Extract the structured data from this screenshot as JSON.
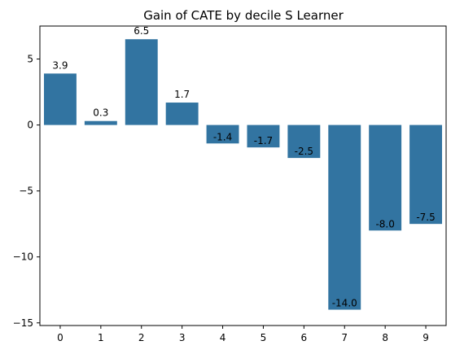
{
  "chart_data": {
    "type": "bar",
    "title": "Gain of CATE by decile S Learner",
    "xlabel": "",
    "ylabel": "",
    "categories": [
      "0",
      "1",
      "2",
      "3",
      "4",
      "5",
      "6",
      "7",
      "8",
      "9"
    ],
    "values": [
      3.9,
      0.3,
      6.5,
      1.7,
      -1.4,
      -1.7,
      -2.5,
      -14.0,
      -8.0,
      -7.5
    ],
    "data_labels": [
      "3.9",
      "0.3",
      "6.5",
      "1.7",
      "-1.4",
      "-1.7",
      "-2.5",
      "-14.0",
      "-8.0",
      "-7.5"
    ],
    "ylim": [
      -15.2,
      7.5
    ],
    "yticks": [
      -15,
      -10,
      -5,
      0,
      5
    ],
    "ytick_labels": [
      "−15",
      "−10",
      "−5",
      "0",
      "5"
    ],
    "bar_color": "#3274a1",
    "grid": false,
    "legend": "none"
  }
}
